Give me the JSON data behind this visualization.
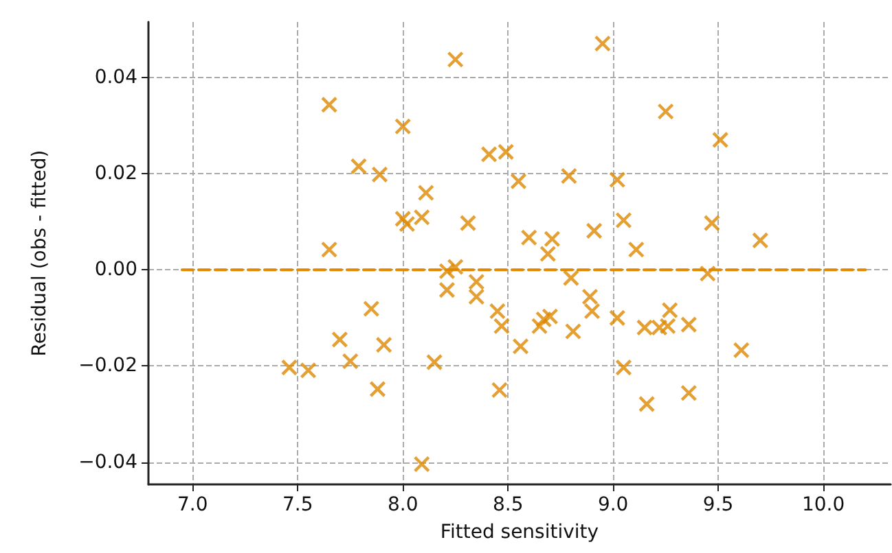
{
  "chart_data": {
    "type": "scatter",
    "xlabel": "Fitted sensitivity",
    "ylabel": "Residual (obs - fitted)",
    "xlim": [
      6.79,
      10.32
    ],
    "ylim": [
      -0.0446,
      0.0515
    ],
    "xticks": [
      {
        "value": 7,
        "label": "7.0"
      },
      7.5,
      {
        "value": 8,
        "label": "8.0"
      },
      8.5,
      {
        "value": 9,
        "label": "9.0"
      },
      9.5,
      {
        "value": 10,
        "label": "10.0"
      }
    ],
    "yticks": [
      {
        "value": -0.04,
        "label": "−0.04"
      },
      {
        "value": -0.02,
        "label": "−0.02"
      },
      {
        "value": 0,
        "label": "0.00"
      },
      0.02,
      0.04
    ],
    "grid": true,
    "series": [
      {
        "color": "#dd8800",
        "marker": "cross",
        "x": [
          7.46,
          7.55,
          7.65,
          7.65,
          7.7,
          7.75,
          7.79,
          7.85,
          7.91,
          7.89,
          7.88,
          8.0,
          8.0,
          8.02,
          8.09,
          8.11,
          8.15,
          8.09,
          8.25,
          8.21,
          8.25,
          8.21,
          8.31,
          8.35,
          8.35,
          8.41,
          8.49,
          8.45,
          8.47,
          8.46,
          8.55,
          8.56,
          8.6,
          8.65,
          8.67,
          8.69,
          8.71,
          8.7,
          8.79,
          8.8,
          8.81,
          8.89,
          8.9,
          8.91,
          8.95,
          9.02,
          9.05,
          9.02,
          9.05,
          9.11,
          9.15,
          9.16,
          9.22,
          9.26,
          9.27,
          9.25,
          9.36,
          9.36,
          9.51,
          9.47,
          9.45,
          9.61,
          9.7
        ],
        "values": [
          -0.0203,
          -0.0209,
          0.0343,
          0.0042,
          -0.0145,
          -0.019,
          0.0215,
          -0.0081,
          -0.0156,
          0.0198,
          -0.0248,
          0.0298,
          0.0106,
          0.0095,
          0.0109,
          0.016,
          -0.0192,
          -0.0404,
          0.0437,
          -0.0003,
          0.0006,
          -0.0042,
          0.0097,
          -0.0025,
          -0.0056,
          0.024,
          0.0245,
          -0.0086,
          -0.0117,
          -0.025,
          0.0184,
          -0.0159,
          0.0067,
          -0.0117,
          -0.0103,
          0.0033,
          0.0064,
          -0.0097,
          0.0195,
          -0.0017,
          -0.0128,
          -0.0056,
          -0.0086,
          0.0081,
          0.047,
          0.0187,
          0.0103,
          -0.01,
          -0.0203,
          0.0042,
          -0.012,
          -0.0279,
          -0.012,
          -0.0117,
          -0.0084,
          0.0329,
          -0.0114,
          -0.0256,
          0.027,
          0.0097,
          -0.0008,
          -0.0167,
          0.0061
        ]
      },
      {
        "type": "line",
        "color": "#dd8800",
        "line_style": "dashed",
        "marker": "none",
        "x": [
          6.95,
          10.2
        ],
        "values": [
          0,
          0
        ]
      }
    ]
  }
}
